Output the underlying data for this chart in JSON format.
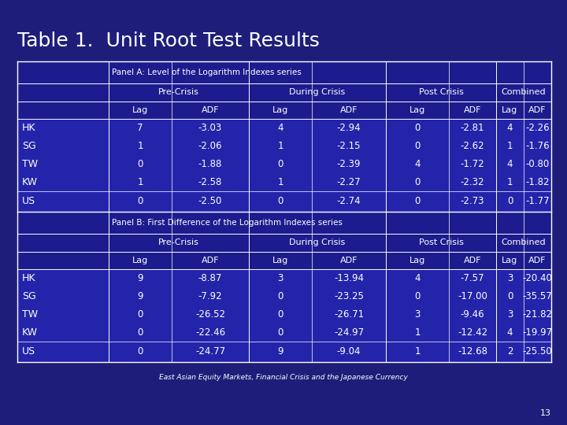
{
  "title": "Table 1.  Unit Root Test Results",
  "subtitle": "East Asian Equity Markets, Financial Crisis and the Japanese Currency",
  "page_number": "13",
  "bg_color": "#1e1e7a",
  "table_header_color": "#2020a0",
  "table_data_color": "#2828b8",
  "panel_a_label": "Panel A: Level of the Logarithm Indexes series",
  "panel_b_label": "Panel B: First Difference of the Logarithm Indexes series",
  "col_groups": [
    "Pre-Crisis",
    "During Crisis",
    "Post Crisis",
    "Combined"
  ],
  "col_sub": [
    "Lag",
    "ADF",
    "Lag",
    "ADF",
    "Lag",
    "ADF",
    "Lag",
    "ADF"
  ],
  "row_labels": [
    "HK",
    "SG",
    "TW",
    "KW",
    "US"
  ],
  "panel_a_data": [
    [
      7,
      -3.03,
      4,
      -2.94,
      0,
      -2.81,
      4,
      -2.26
    ],
    [
      1,
      -2.06,
      1,
      -2.15,
      0,
      -2.62,
      1,
      -1.76
    ],
    [
      0,
      -1.88,
      0,
      -2.39,
      4,
      -1.72,
      4,
      -0.8
    ],
    [
      1,
      -2.58,
      1,
      -2.27,
      0,
      -2.32,
      1,
      -1.82
    ],
    [
      0,
      -2.5,
      0,
      -2.74,
      0,
      -2.73,
      0,
      -1.77
    ]
  ],
  "panel_b_data": [
    [
      9,
      -8.87,
      3,
      -13.94,
      4,
      -7.57,
      3,
      -20.4
    ],
    [
      9,
      -7.92,
      0,
      -23.25,
      0,
      -17.0,
      0,
      -35.57
    ],
    [
      0,
      -26.52,
      0,
      -26.71,
      3,
      -9.46,
      3,
      -21.82
    ],
    [
      0,
      -22.46,
      0,
      -24.97,
      1,
      -12.42,
      4,
      -19.97
    ],
    [
      0,
      -24.77,
      9,
      -9.04,
      1,
      -12.68,
      2,
      -25.5
    ]
  ]
}
